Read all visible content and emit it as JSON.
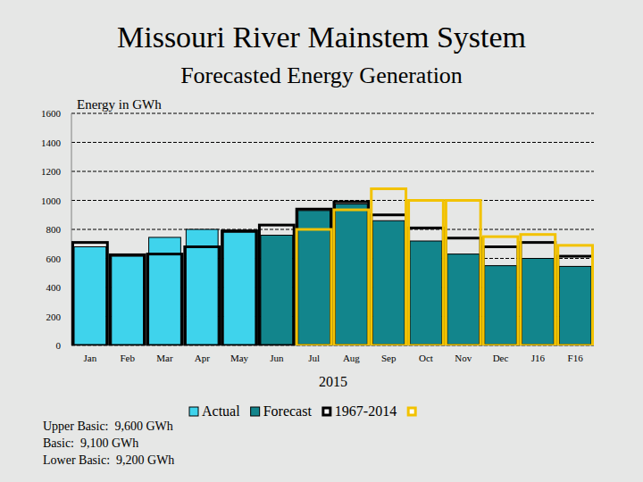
{
  "chart_data": {
    "type": "bar",
    "title": "Missouri River Mainstem System",
    "subtitle": "Forecasted Energy Generation",
    "y_label": "Energy in GWh",
    "x_label": "2015",
    "categories": [
      "Jan",
      "Feb",
      "Mar",
      "Apr",
      "May",
      "Jun",
      "Jul",
      "Aug",
      "Sep",
      "Oct",
      "Nov",
      "Dec",
      "J16",
      "F16"
    ],
    "series": [
      {
        "name": "Actual",
        "type": "bar",
        "color": "#3fd3ec",
        "values": [
          680,
          615,
          745,
          800,
          780,
          null,
          null,
          null,
          null,
          null,
          null,
          null,
          null,
          null
        ]
      },
      {
        "name": "Forecast",
        "type": "bar",
        "color": "#12858c",
        "values": [
          null,
          null,
          null,
          null,
          null,
          760,
          930,
          975,
          860,
          720,
          630,
          550,
          600,
          545
        ]
      },
      {
        "name": "1967-2014",
        "type": "step",
        "color": "#000000",
        "values": [
          710,
          625,
          630,
          680,
          790,
          830,
          940,
          990,
          900,
          810,
          740,
          680,
          710,
          615
        ]
      },
      {
        "type": "step",
        "color": "#f2c200",
        "values": [
          null,
          null,
          null,
          null,
          null,
          null,
          800,
          935,
          1080,
          1000,
          1000,
          750,
          765,
          690
        ]
      }
    ],
    "ylim": [
      0,
      1600
    ],
    "yticks": [
      0,
      200,
      400,
      600,
      800,
      1000,
      1200,
      1400,
      1600
    ],
    "grid": true,
    "annotations": [
      "Upper Basic:  9,600 GWh",
      "Basic:  9,100 GWh",
      "Lower Basic:  9,200 GWh"
    ]
  }
}
